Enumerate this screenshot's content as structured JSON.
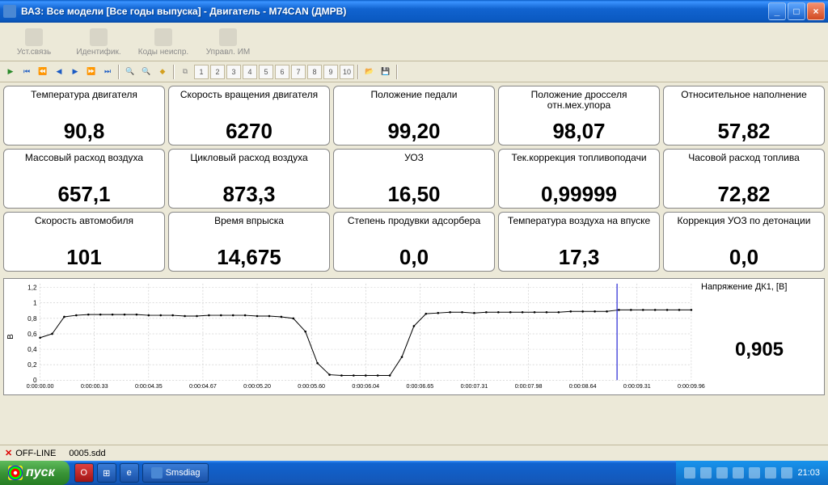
{
  "window": {
    "title": "ВАЗ: Все модели [Все годы выпуска] - Двигатель - М74CAN (ДМРВ)"
  },
  "toolbar": {
    "buttons": [
      {
        "label": "Уст.связь"
      },
      {
        "label": "Идентифик."
      },
      {
        "label": "Коды неиспр."
      },
      {
        "label": "Управл. ИМ"
      }
    ]
  },
  "sec_toolbar": {
    "nums": [
      "1",
      "2",
      "3",
      "4",
      "5",
      "6",
      "7",
      "8",
      "9",
      "10"
    ]
  },
  "params": [
    {
      "label": "Температура двигателя",
      "value": "90,8"
    },
    {
      "label": "Скорость вращения двигателя",
      "value": "6270"
    },
    {
      "label": "Положение педали",
      "value": "99,20"
    },
    {
      "label": "Положение дросселя отн.мех.упора",
      "value": "98,07"
    },
    {
      "label": "Относительное наполнение",
      "value": "57,82"
    },
    {
      "label": "Массовый расход воздуха",
      "value": "657,1"
    },
    {
      "label": "Цикловый расход воздуха",
      "value": "873,3"
    },
    {
      "label": "УОЗ",
      "value": "16,50"
    },
    {
      "label": "Тек.коррекция топливоподачи",
      "value": "0,99999"
    },
    {
      "label": "Часовой расход топлива",
      "value": "72,82"
    },
    {
      "label": "Скорость автомобиля",
      "value": "101"
    },
    {
      "label": "Время впрыска",
      "value": "14,675"
    },
    {
      "label": "Степень продувки адсорбера",
      "value": "0,0"
    },
    {
      "label": "Температура воздуха на впуске",
      "value": "17,3"
    },
    {
      "label": "Коррекция УОЗ по детонации",
      "value": "0,0"
    }
  ],
  "chart": {
    "y_unit": "В",
    "right_label": "Напряжение ДК1, [В]",
    "right_value": "0,905",
    "ylim": [
      0,
      1.25
    ],
    "yticks": [
      "0",
      "0,2",
      "0,4",
      "0,6",
      "0,8",
      "1",
      "1,2"
    ],
    "xticks": [
      "0:00:00.00",
      "0:00:00.33",
      "0:00:04.35",
      "0:00:04.67",
      "0:00:05.20",
      "0:00:05.60",
      "0:00:06.04",
      "0:00:06.65",
      "0:00:07.31",
      "0:00:07.98",
      "0:00:08.64",
      "0:00:09.31",
      "0:00:09.96"
    ],
    "grid_color": "#bbbbbb",
    "line_color": "#000000",
    "cursor_x": 0.886,
    "cursor_color": "#0000cc",
    "series_y": [
      0.55,
      0.6,
      0.82,
      0.84,
      0.85,
      0.85,
      0.85,
      0.85,
      0.85,
      0.84,
      0.84,
      0.84,
      0.83,
      0.83,
      0.84,
      0.84,
      0.84,
      0.84,
      0.83,
      0.83,
      0.82,
      0.8,
      0.63,
      0.22,
      0.07,
      0.06,
      0.06,
      0.06,
      0.06,
      0.06,
      0.3,
      0.7,
      0.86,
      0.87,
      0.88,
      0.88,
      0.87,
      0.88,
      0.88,
      0.88,
      0.88,
      0.88,
      0.88,
      0.88,
      0.89,
      0.89,
      0.89,
      0.89,
      0.91,
      0.91,
      0.91,
      0.91,
      0.91,
      0.91,
      0.91
    ]
  },
  "status": {
    "offline": "OFF-LINE",
    "file": "0005.sdd"
  },
  "taskbar": {
    "start": "пуск",
    "app": "Smsdiag",
    "clock": "21:03"
  }
}
